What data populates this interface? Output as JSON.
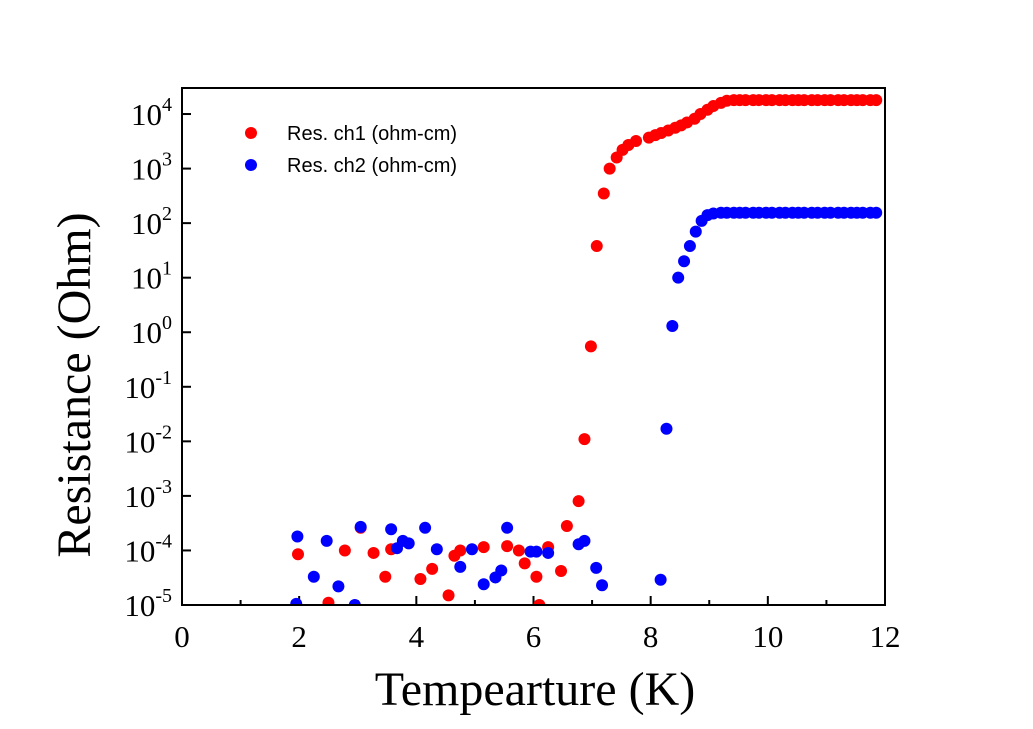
{
  "chart_data": {
    "type": "scatter",
    "title": "",
    "xlabel": "Tempearture (K)",
    "ylabel": "Resistance (Ohm)",
    "xlim": [
      0,
      12
    ],
    "ylim": [
      1e-05,
      30000
    ],
    "yscale": "log",
    "x_ticks": [
      "0",
      "2",
      "4",
      "6",
      "8",
      "10",
      "12"
    ],
    "y_ticks": [
      {
        "base": "10",
        "exp": "-5"
      },
      {
        "base": "10",
        "exp": "-4"
      },
      {
        "base": "10",
        "exp": "-3"
      },
      {
        "base": "10",
        "exp": "-2"
      },
      {
        "base": "10",
        "exp": "-1"
      },
      {
        "base": "10",
        "exp": "0"
      },
      {
        "base": "10",
        "exp": "1"
      },
      {
        "base": "10",
        "exp": "2"
      },
      {
        "base": "10",
        "exp": "3"
      },
      {
        "base": "10",
        "exp": "4"
      }
    ],
    "grid": false,
    "legend_position": "top-left",
    "series": [
      {
        "name": "Res. ch1 (ohm-cm)",
        "color": "#ff0000",
        "points": [
          [
            1.98,
            8.5e-05
          ],
          [
            2.5,
            1.1e-05
          ],
          [
            2.78,
            0.0001
          ],
          [
            3.05,
            0.00026
          ],
          [
            3.27,
            9e-05
          ],
          [
            3.47,
            3.3e-05
          ],
          [
            3.57,
            0.000105
          ],
          [
            4.07,
            3e-05
          ],
          [
            4.27,
            4.6e-05
          ],
          [
            4.55,
            1.5e-05
          ],
          [
            4.65,
            8e-05
          ],
          [
            4.75,
            0.0001
          ],
          [
            5.15,
            0.000115
          ],
          [
            5.55,
            0.00012
          ],
          [
            5.75,
            0.0001
          ],
          [
            5.85,
            5.8e-05
          ],
          [
            6.05,
            3.3e-05
          ],
          [
            6.1,
            1e-05
          ],
          [
            6.25,
            0.000115
          ],
          [
            6.47,
            4.2e-05
          ],
          [
            6.57,
            0.00028
          ],
          [
            6.77,
            0.0008
          ],
          [
            6.87,
            0.011
          ],
          [
            6.98,
            0.55
          ],
          [
            7.08,
            38
          ],
          [
            7.2,
            350
          ],
          [
            7.3,
            1000
          ],
          [
            7.42,
            1600
          ],
          [
            7.52,
            2200
          ],
          [
            7.62,
            2700
          ],
          [
            7.75,
            3200
          ],
          [
            7.97,
            3700
          ],
          [
            8.08,
            4100
          ],
          [
            8.18,
            4500
          ],
          [
            8.3,
            5000
          ],
          [
            8.42,
            5600
          ],
          [
            8.52,
            6200
          ],
          [
            8.62,
            7000
          ],
          [
            8.75,
            8200
          ],
          [
            8.85,
            10000
          ],
          [
            8.97,
            12000
          ],
          [
            9.07,
            14000
          ],
          [
            9.2,
            16000
          ],
          [
            9.3,
            17500
          ],
          [
            9.42,
            18000
          ],
          [
            9.52,
            18000
          ],
          [
            9.62,
            18000
          ],
          [
            9.75,
            18000
          ],
          [
            9.85,
            18000
          ],
          [
            9.97,
            18000
          ],
          [
            10.07,
            18000
          ],
          [
            10.2,
            18000
          ],
          [
            10.3,
            18000
          ],
          [
            10.42,
            18000
          ],
          [
            10.52,
            18000
          ],
          [
            10.62,
            18000
          ],
          [
            10.75,
            18000
          ],
          [
            10.85,
            18000
          ],
          [
            10.97,
            18000
          ],
          [
            11.07,
            18000
          ],
          [
            11.2,
            18000
          ],
          [
            11.3,
            18000
          ],
          [
            11.42,
            18000
          ],
          [
            11.52,
            18000
          ],
          [
            11.62,
            18000
          ],
          [
            11.75,
            18000
          ],
          [
            11.85,
            18000
          ]
        ]
      },
      {
        "name": "Res. ch2 (ohm-cm)",
        "color": "#0000ff",
        "points": [
          [
            1.97,
            0.00018
          ],
          [
            1.95,
            1.05e-05
          ],
          [
            2.25,
            3.3e-05
          ],
          [
            2.47,
            0.00015
          ],
          [
            2.67,
            2.2e-05
          ],
          [
            2.95,
            1e-05
          ],
          [
            3.05,
            0.00027
          ],
          [
            3.57,
            0.000245
          ],
          [
            3.67,
            0.00011
          ],
          [
            3.77,
            0.00015
          ],
          [
            3.87,
            0.000135
          ],
          [
            4.15,
            0.00026
          ],
          [
            4.35,
            0.000105
          ],
          [
            4.75,
            5e-05
          ],
          [
            4.95,
            0.000105
          ],
          [
            5.15,
            2.4e-05
          ],
          [
            5.35,
            3.2e-05
          ],
          [
            5.45,
            4.3e-05
          ],
          [
            5.55,
            0.00026
          ],
          [
            5.95,
            9.5e-05
          ],
          [
            6.05,
            9.5e-05
          ],
          [
            6.25,
            9e-05
          ],
          [
            6.77,
            0.00013
          ],
          [
            6.87,
            0.00015
          ],
          [
            7.07,
            4.8e-05
          ],
          [
            7.17,
            2.3e-05
          ],
          [
            8.17,
            2.9e-05
          ],
          [
            8.27,
            0.017
          ],
          [
            8.37,
            1.3
          ],
          [
            8.47,
            10
          ],
          [
            8.57,
            20
          ],
          [
            8.67,
            38
          ],
          [
            8.77,
            70
          ],
          [
            8.87,
            110
          ],
          [
            8.97,
            140
          ],
          [
            9.07,
            150
          ],
          [
            9.2,
            155
          ],
          [
            9.3,
            155
          ],
          [
            9.42,
            155
          ],
          [
            9.52,
            155
          ],
          [
            9.62,
            155
          ],
          [
            9.75,
            155
          ],
          [
            9.85,
            155
          ],
          [
            9.97,
            155
          ],
          [
            10.07,
            155
          ],
          [
            10.2,
            155
          ],
          [
            10.3,
            155
          ],
          [
            10.42,
            155
          ],
          [
            10.52,
            155
          ],
          [
            10.62,
            155
          ],
          [
            10.75,
            155
          ],
          [
            10.85,
            155
          ],
          [
            10.97,
            155
          ],
          [
            11.07,
            155
          ],
          [
            11.2,
            155
          ],
          [
            11.3,
            155
          ],
          [
            11.42,
            155
          ],
          [
            11.52,
            155
          ],
          [
            11.62,
            155
          ],
          [
            11.75,
            155
          ],
          [
            11.85,
            155
          ]
        ]
      }
    ]
  }
}
